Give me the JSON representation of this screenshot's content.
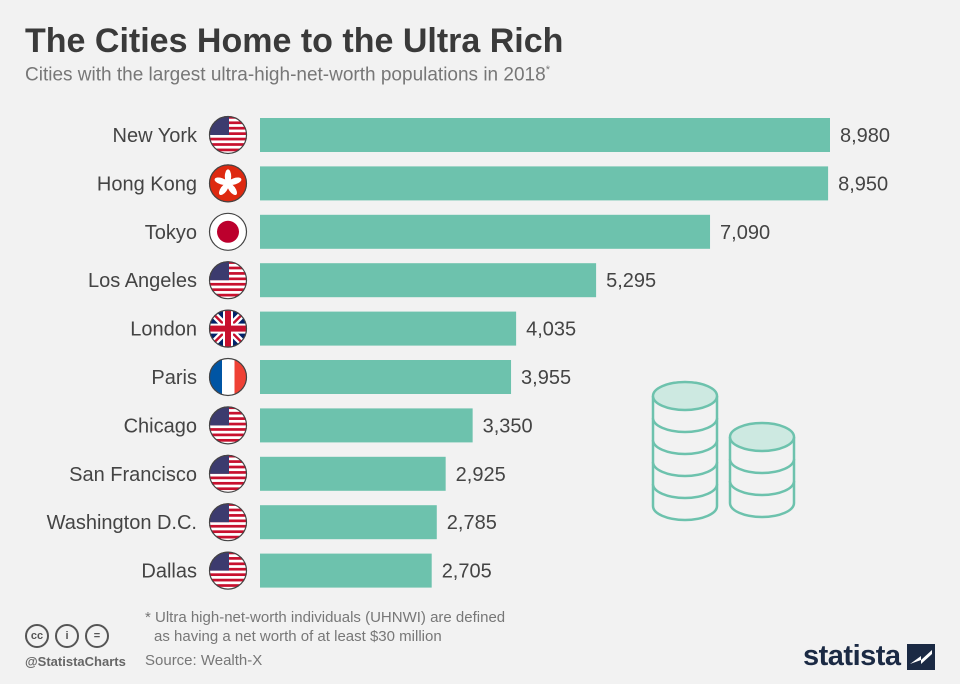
{
  "header": {
    "title": "The Cities Home to the Ultra Rich",
    "subtitle": "Cities with the largest ultra-high-net-worth populations in 2018",
    "subtitle_mark": "*"
  },
  "chart_data": {
    "type": "bar",
    "orientation": "horizontal",
    "title": "The Cities Home to the Ultra Rich",
    "subtitle": "Cities with the largest ultra-high-net-worth populations in 2018*",
    "categories": [
      "New York",
      "Hong Kong",
      "Tokyo",
      "Los Angeles",
      "London",
      "Paris",
      "Chicago",
      "San Francisco",
      "Washington D.C.",
      "Dallas"
    ],
    "values": [
      8980,
      8950,
      7090,
      5295,
      4035,
      3955,
      3350,
      2925,
      2785,
      2705
    ],
    "value_labels": [
      "8,980",
      "8,950",
      "7,090",
      "5,295",
      "4,035",
      "3,955",
      "3,350",
      "2,925",
      "2,785",
      "2,705"
    ],
    "flags": [
      "us-flag-icon",
      "hong-kong-flag-icon",
      "japan-flag-icon",
      "us-flag-icon",
      "uk-flag-icon",
      "france-flag-icon",
      "us-flag-icon",
      "us-flag-icon",
      "us-flag-icon",
      "us-flag-icon"
    ],
    "xlim": [
      0,
      8980
    ],
    "bar_color": "#6dc2ad",
    "grid": false,
    "legend": "none"
  },
  "footer": {
    "footnote_line1": "* Ultra high-net-worth individuals (UHNWI) are defined",
    "footnote_line2": "as having a net worth of at least $30 million",
    "handle": "@StatistaCharts",
    "source": "Source: Wealth-X",
    "brand": "statista",
    "cc_icons": [
      "cc",
      "i",
      "="
    ]
  },
  "colors": {
    "bar": "#6dc2ad",
    "coin_fill": "#cde9e1",
    "coin_stroke": "#6dc2ad",
    "brand": "#1b2a44"
  }
}
